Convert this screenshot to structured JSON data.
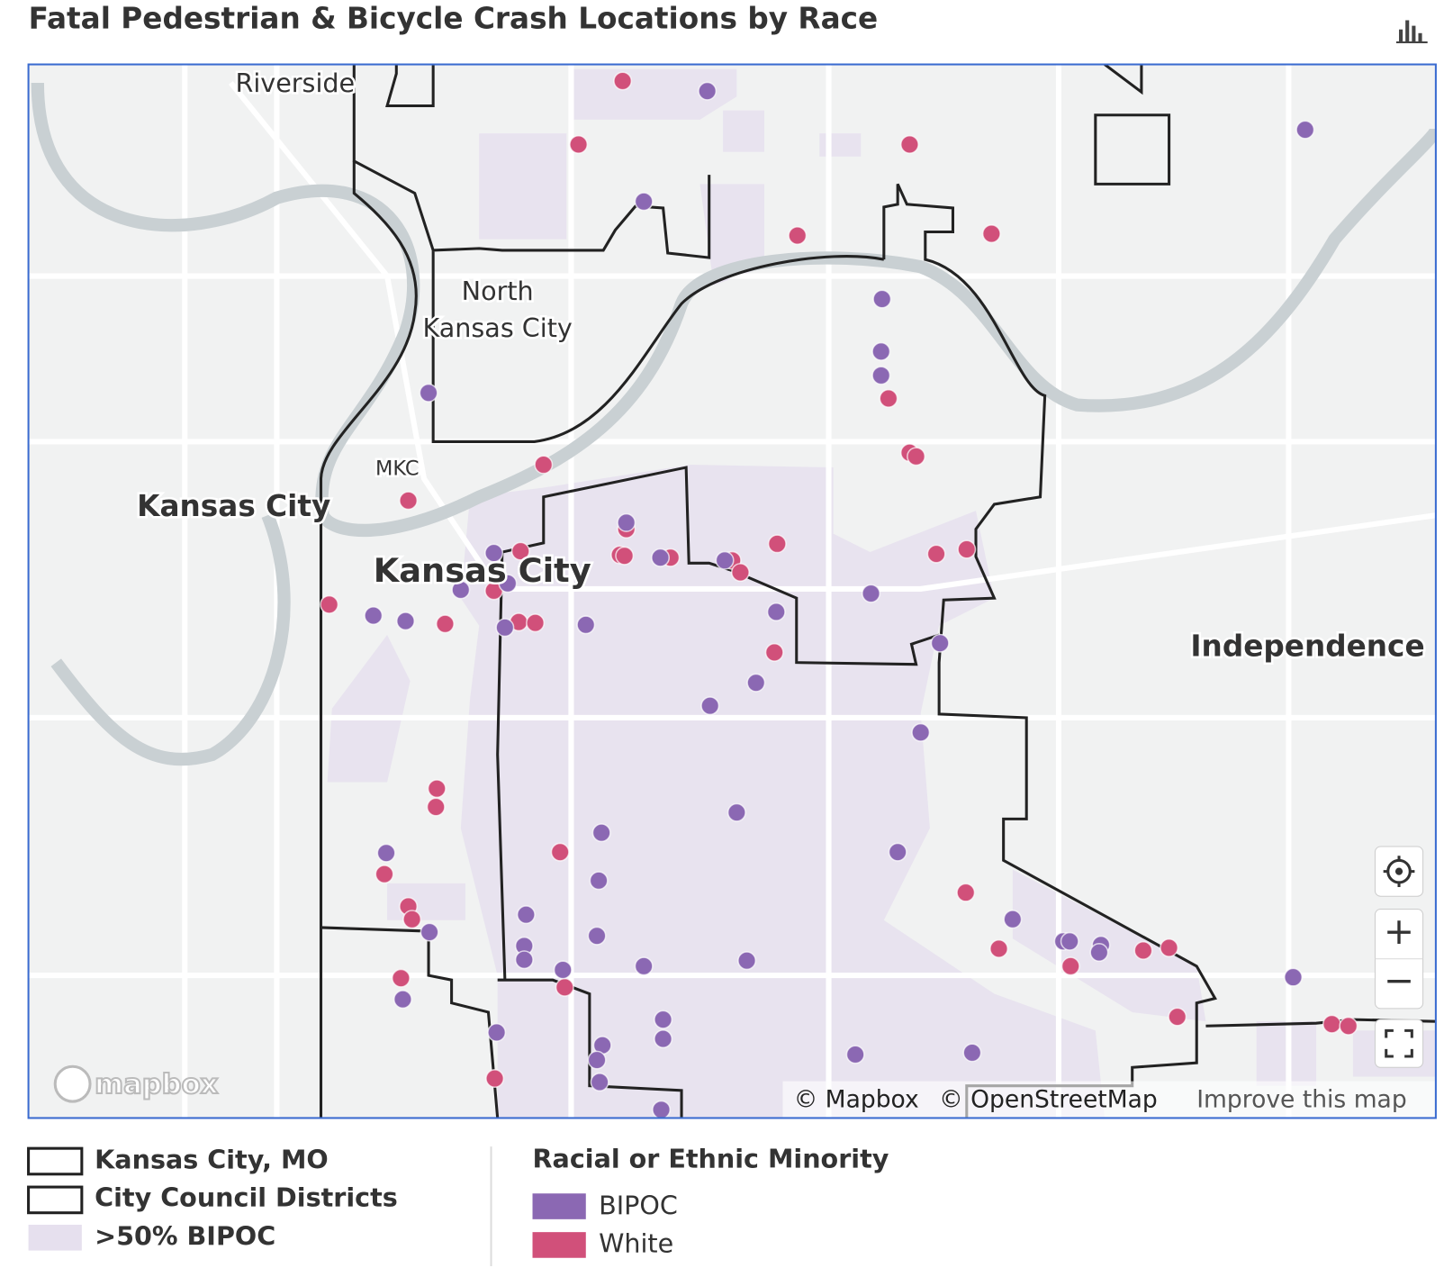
{
  "header": {
    "title": "Fatal Pedestrian & Bicycle Crash Locations by Race"
  },
  "map": {
    "place_labels": [
      "Riverside",
      "North",
      "Kansas City",
      "MKC",
      "Kansas City",
      "Kansas City",
      "Independence"
    ],
    "logo": "mapbox",
    "attribution": [
      "© Mapbox",
      "© OpenStreetMap",
      "Improve this map"
    ],
    "controls": [
      "+",
      "−"
    ]
  },
  "legend": {
    "boundaries": [
      {
        "label": "Kansas City, MO"
      },
      {
        "label": "City Council Districts"
      },
      {
        "label": ">50% BIPOC",
        "color": "#e6e0ee"
      }
    ],
    "race": {
      "title": "Racial or Ethnic Minority",
      "items": [
        {
          "label": "BIPOC",
          "color": "#8b68b3"
        },
        {
          "label": "White",
          "color": "#d1507a"
        }
      ]
    }
  }
}
